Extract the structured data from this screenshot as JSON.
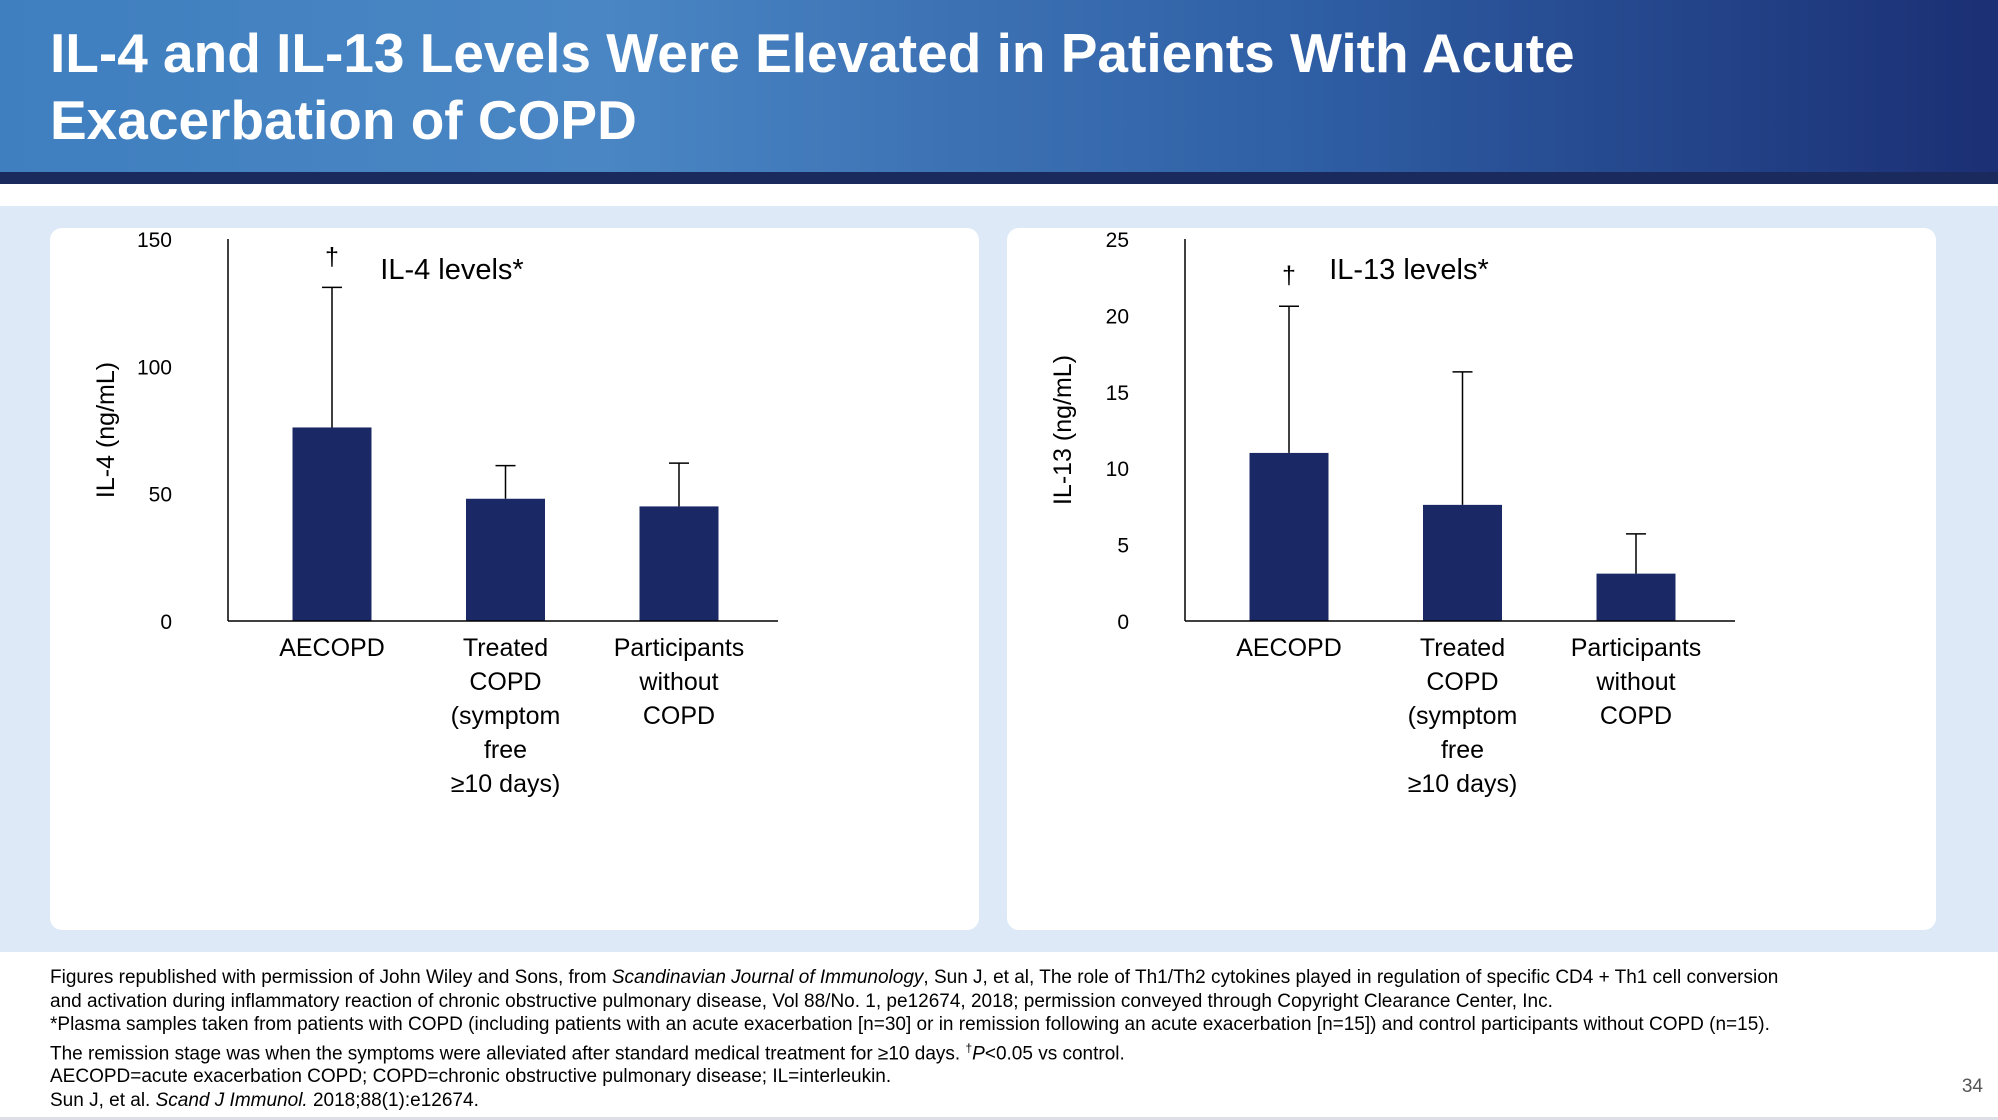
{
  "slide": {
    "title_line1": "IL-4 and IL-13 Levels Were Elevated in Patients With Acute",
    "title_line2": "Exacerbation of COPD",
    "page_number": "34"
  },
  "colors": {
    "bar": "#1b2866",
    "header_start": "#3f7fbf",
    "header_end": "#1b2f74",
    "content_bg": "#dde9f6"
  },
  "chart_data": [
    {
      "type": "bar",
      "title": "IL-4 levels*",
      "ylabel": "IL-4 (ng/mL)",
      "xlabel": "",
      "ylim": [
        0,
        150
      ],
      "yticks": [
        0,
        50,
        100,
        150
      ],
      "categories": [
        [
          "AECOPD"
        ],
        [
          "Treated",
          "COPD",
          "(symptom",
          "free",
          "≥10 days)"
        ],
        [
          "Participants",
          "without",
          "COPD"
        ]
      ],
      "values": [
        76,
        48,
        45
      ],
      "error_upper": [
        131,
        61,
        62
      ],
      "annotations": [
        {
          "category_index": 0,
          "text": "†",
          "y": 143
        }
      ],
      "grid": false
    },
    {
      "type": "bar",
      "title": "IL-13 levels*",
      "ylabel": "IL-13 (ng/mL)",
      "xlabel": "",
      "ylim": [
        0,
        25
      ],
      "yticks": [
        0,
        5,
        10,
        15,
        20,
        25
      ],
      "categories": [
        [
          "AECOPD"
        ],
        [
          "Treated",
          "COPD",
          "(symptom",
          "free",
          "≥10 days)"
        ],
        [
          "Participants",
          "without",
          "COPD"
        ]
      ],
      "values": [
        11,
        7.6,
        3.1
      ],
      "error_upper": [
        20.6,
        16.3,
        5.7
      ],
      "annotations": [
        {
          "category_index": 0,
          "text": "†",
          "y": 22.6
        }
      ],
      "grid": false
    }
  ],
  "footnotes": {
    "l1_a": "Figures republished with permission of John Wiley and Sons, from ",
    "l1_i": "Scandinavian Journal of Immunology",
    "l1_b": ", Sun J, et al, The role of Th1/Th2 cytokines played in regulation of specific CD4 + Th1 cell conversion",
    "l2": "and activation during inflammatory reaction of chronic obstructive pulmonary disease, Vol 88/No. 1, pe12674, 2018; permission conveyed through Copyright Clearance Center, Inc.",
    "l3": "*Plasma samples taken from patients with COPD (including patients with an acute exacerbation [n=30] or in remission following an acute exacerbation [n=15]) and control participants without COPD (n=15).",
    "l4_a": "The remission stage was when the symptoms were alleviated after standard medical treatment for ≥10 days. ",
    "l4_sup": "†",
    "l4_i": "P",
    "l4_b": "<0.05 vs control.",
    "l5": "AECOPD=acute exacerbation COPD; COPD=chronic obstructive pulmonary disease; IL=interleukin.",
    "l6_a": "Sun J, et al. ",
    "l6_i": "Scand J Immunol.",
    "l6_b": " 2018;88(1):e12674."
  }
}
